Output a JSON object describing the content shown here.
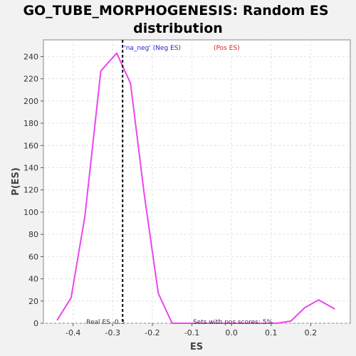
{
  "chart_data": {
    "type": "line",
    "title_lines": [
      "GO_TUBE_MORPHOGENESIS: Random ES",
      "distribution"
    ],
    "xlabel": "ES",
    "ylabel": "P(ES)",
    "xlim": [
      -0.475,
      0.3
    ],
    "ylim": [
      0,
      255
    ],
    "x_ticks": [
      -0.4,
      -0.3,
      -0.2,
      -0.1,
      0.0,
      0.1,
      0.2
    ],
    "x_tick_labels": [
      "-0.4",
      "-0.3",
      "-0.2",
      "-0.1",
      "0.0",
      "0.1",
      "0.2"
    ],
    "y_ticks": [
      0,
      20,
      40,
      60,
      80,
      100,
      120,
      140,
      160,
      180,
      200,
      220,
      240
    ],
    "y_tick_labels": [
      "0",
      "20",
      "40",
      "60",
      "80",
      "100",
      "120",
      "140",
      "160",
      "180",
      "200",
      "220",
      "240"
    ],
    "grid": true,
    "legend": {
      "placement": "top-center",
      "neg_label": "'na_neg' (Neg ES)",
      "pos_label": "(Pos ES)",
      "neg_color": "#2222cc",
      "pos_color": "#dd2222"
    },
    "series": [
      {
        "color": "#ee44ee",
        "x": [
          -0.44,
          -0.405,
          -0.37,
          -0.33,
          -0.29,
          -0.255,
          -0.22,
          -0.185,
          -0.15,
          -0.12,
          -0.08,
          -0.04,
          0.0,
          0.04,
          0.08,
          0.115,
          0.15,
          0.185,
          0.22,
          0.26
        ],
        "y": [
          3,
          23,
          97,
          227,
          243,
          216,
          115,
          27,
          0,
          0,
          0,
          0,
          0,
          0,
          0,
          0,
          2,
          14,
          21,
          13
        ]
      }
    ],
    "real_es": {
      "value": -0.275,
      "label": "Real ES -0.3",
      "line_color": "#000000"
    },
    "annotation": "Sets with pos scores: 5%",
    "colors": {
      "background": "#f2f2f2",
      "plot_background": "#ffffff",
      "grid": "#e2e2e2"
    }
  }
}
